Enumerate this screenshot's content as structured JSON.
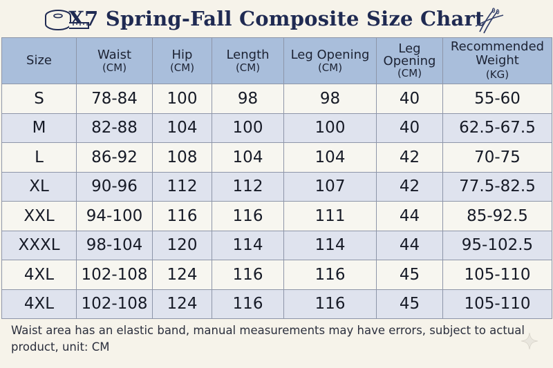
{
  "title": "X7 Spring-Fall Composite Size Chart",
  "columns": [
    {
      "name": "Size",
      "unit": ""
    },
    {
      "name": "Waist",
      "unit": "(CM)"
    },
    {
      "name": "Hip",
      "unit": "(CM)"
    },
    {
      "name": "Length",
      "unit": "(CM)"
    },
    {
      "name": "Leg Opening",
      "unit": "(CM)"
    },
    {
      "name": "Leg Opening",
      "unit": "(CM)"
    },
    {
      "name": "Recommended Weight",
      "unit": "(KG)"
    }
  ],
  "rows": [
    [
      "S",
      "78-84",
      "100",
      "98",
      "98",
      "40",
      "55-60"
    ],
    [
      "M",
      "82-88",
      "104",
      "100",
      "100",
      "40",
      "62.5-67.5"
    ],
    [
      "L",
      "86-92",
      "108",
      "104",
      "104",
      "42",
      "70-75"
    ],
    [
      "XL",
      "90-96",
      "112",
      "112",
      "107",
      "42",
      "77.5-82.5"
    ],
    [
      "XXL",
      "94-100",
      "116",
      "116",
      "111",
      "44",
      "85-92.5"
    ],
    [
      "XXXL",
      "98-104",
      "120",
      "114",
      "114",
      "44",
      "95-102.5"
    ],
    [
      "4XL",
      "102-108",
      "124",
      "116",
      "116",
      "45",
      "105-110"
    ],
    [
      "4XL",
      "102-108",
      "124",
      "116",
      "116",
      "45",
      "105-110"
    ]
  ],
  "footnote": "Waist area has an elastic band, manual measurements may have errors, subject to actual product, unit: CM",
  "icons": {
    "left": "tape-measure-icon",
    "right": "sewing-needles-icon",
    "corner": "sparkle-icon"
  },
  "colors": {
    "background": "#f6f3ea",
    "header": "#a9bedb",
    "row_alt": "#dfe3ee",
    "title": "#1f2a52"
  }
}
